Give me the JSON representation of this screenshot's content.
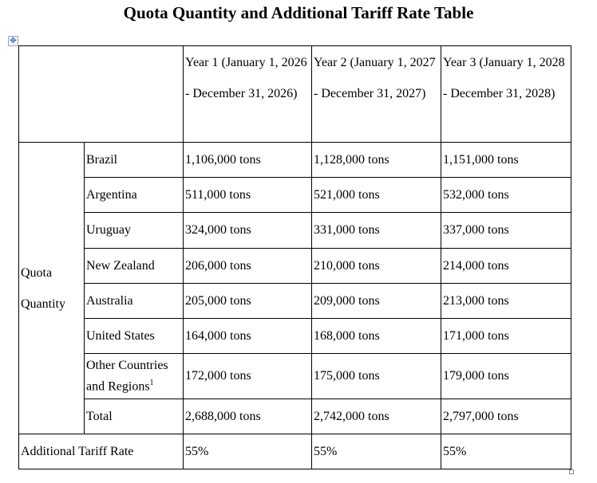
{
  "title": "Quota Quantity and Additional Tariff Rate Table",
  "table": {
    "headers": [
      "Year 1 (January 1, 2026 - December 31, 2026)",
      "Year 2 (January 1, 2027 - December 31, 2027)",
      "Year 3 (January 1, 2028 - December 31, 2028)"
    ],
    "group_label": "Quota Quantity",
    "rows": [
      {
        "label": "Brazil",
        "values": [
          "1,106,000 tons",
          "1,128,000 tons",
          "1,151,000 tons"
        ]
      },
      {
        "label": "Argentina",
        "values": [
          "511,000 tons",
          "521,000 tons",
          "532,000 tons"
        ]
      },
      {
        "label": "Uruguay",
        "values": [
          "324,000 tons",
          "331,000 tons",
          "337,000 tons"
        ]
      },
      {
        "label": "New Zealand",
        "values": [
          "206,000 tons",
          "210,000 tons",
          "214,000 tons"
        ]
      },
      {
        "label": "Australia",
        "values": [
          "205,000 tons",
          "209,000 tons",
          "213,000 tons"
        ]
      },
      {
        "label": "United States",
        "values": [
          "164,000 tons",
          "168,000 tons",
          "171,000 tons"
        ]
      },
      {
        "label": "Other Countries and Regions",
        "footnote": "1",
        "values": [
          "172,000 tons",
          "175,000 tons",
          "179,000 tons"
        ]
      },
      {
        "label": "Total",
        "values": [
          "2,688,000 tons",
          "2,742,000 tons",
          "2,797,000 tons"
        ]
      }
    ],
    "tariff": {
      "label": "Additional Tariff Rate",
      "values": [
        "55%",
        "55%",
        "55%"
      ]
    }
  }
}
